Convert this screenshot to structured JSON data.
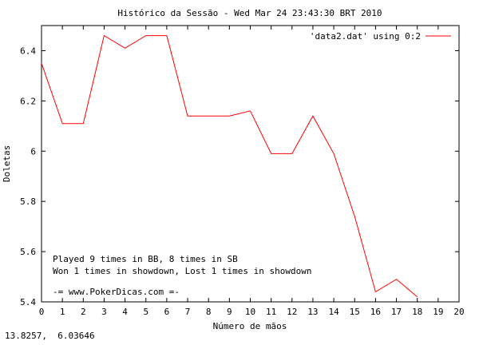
{
  "chart_data": {
    "type": "line",
    "title": "Histórico da Sessão - Wed Mar 24 23:43:30 BRT 2010",
    "xlabel": "Número de mãos",
    "ylabel": "Doletas",
    "xlim": [
      0,
      20
    ],
    "ylim": [
      5.4,
      6.5
    ],
    "x_ticks": [
      "0",
      "1",
      "2",
      "3",
      "4",
      "5",
      "6",
      "7",
      "8",
      "9",
      "10",
      "11",
      "12",
      "13",
      "14",
      "15",
      "16",
      "17",
      "18",
      "19",
      "20"
    ],
    "y_ticks": [
      "5.4",
      "5.6",
      "5.8",
      "6",
      "6.2",
      "6.4"
    ],
    "y_tick_values": [
      5.4,
      5.6,
      5.8,
      6.0,
      6.2,
      6.4
    ],
    "grid": false,
    "legend_position": "top-right",
    "series": [
      {
        "name": "'data2.dat' using 0:2",
        "color": "#ff0000",
        "x": [
          0,
          1,
          2,
          3,
          4,
          5,
          6,
          7,
          8,
          9,
          10,
          11,
          12,
          13,
          14,
          15,
          16,
          17,
          18
        ],
        "y": [
          6.35,
          6.11,
          6.11,
          6.46,
          6.41,
          6.46,
          6.46,
          6.14,
          6.14,
          6.14,
          6.16,
          5.99,
          5.99,
          6.14,
          5.99,
          5.74,
          5.44,
          5.49,
          5.42
        ]
      }
    ],
    "annotations": [
      "Played 9 times in BB, 8 times in SB",
      "Won 1 times in showdown, Lost 1 times in showdown",
      "-= www.PokerDicas.com =-"
    ]
  },
  "status": {
    "coordinates": "13.8257,  6.03646"
  }
}
